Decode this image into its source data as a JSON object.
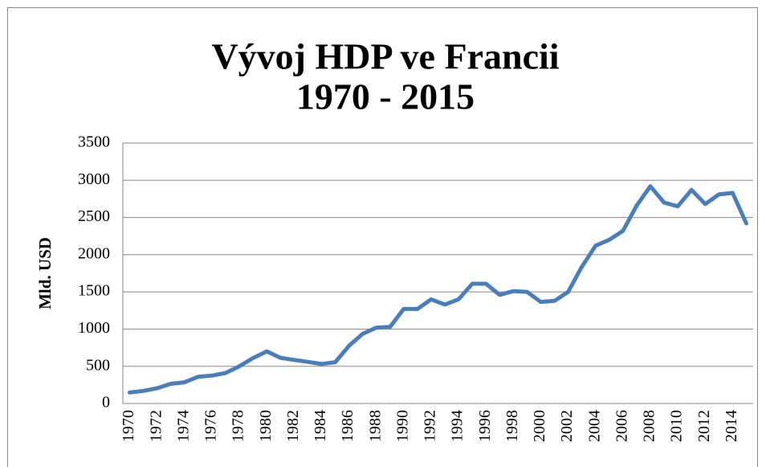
{
  "chart_data": {
    "type": "line",
    "title": [
      "Vývoj HDP ve Francii",
      "1970 - 2015"
    ],
    "y_label": "Mld. USD",
    "categories": [
      "1970",
      null,
      "1972",
      null,
      "1974",
      null,
      "1976",
      null,
      "1978",
      null,
      "1980",
      null,
      "1982",
      null,
      "1984",
      null,
      "1986",
      null,
      "1988",
      null,
      "1990",
      null,
      "1992",
      null,
      "1994",
      null,
      "1996",
      null,
      "1998",
      null,
      "2000",
      null,
      "2002",
      null,
      "2004",
      null,
      "2006",
      null,
      "2008",
      null,
      "2010",
      null,
      "2012",
      null,
      "2014",
      null
    ],
    "series": [
      {
        "color": "#4a7ebb",
        "values": [
          148,
          170,
          205,
          265,
          285,
          360,
          375,
          410,
          500,
          610,
          700,
          615,
          585,
          560,
          530,
          555,
          775,
          935,
          1020,
          1030,
          1270,
          1270,
          1400,
          1330,
          1400,
          1610,
          1610,
          1460,
          1510,
          1500,
          1365,
          1380,
          1500,
          1840,
          2120,
          2200,
          2320,
          2660,
          2920,
          2700,
          2650,
          2870,
          2680,
          2810,
          2830,
          2420
        ]
      }
    ],
    "ylim": [
      0,
      3500
    ],
    "yticks": [
      0,
      500,
      1000,
      1500,
      2000,
      2500,
      3000,
      3500
    ],
    "grid": true
  }
}
